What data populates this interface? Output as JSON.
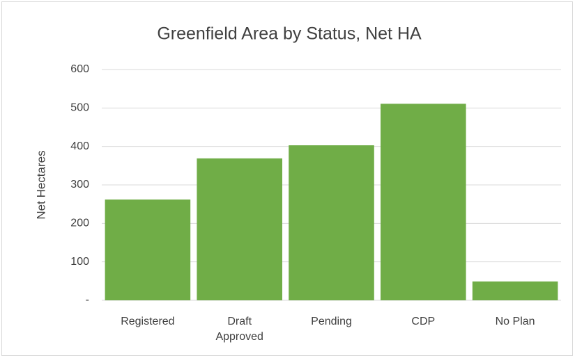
{
  "chart_data": {
    "type": "bar",
    "title": "Greenfield Area by Status, Net HA",
    "y_label": "Net Hectares",
    "categories": [
      "Registered",
      "Draft Approved",
      "Pending",
      "CDP",
      "No Plan"
    ],
    "values": [
      262,
      369,
      403,
      511,
      49
    ],
    "color": "#70ad47",
    "ylim": [
      0,
      600
    ],
    "yticks": [
      {
        "value": 0,
        "label": "-"
      },
      100,
      200,
      300,
      400,
      500,
      600
    ],
    "grid": true
  }
}
